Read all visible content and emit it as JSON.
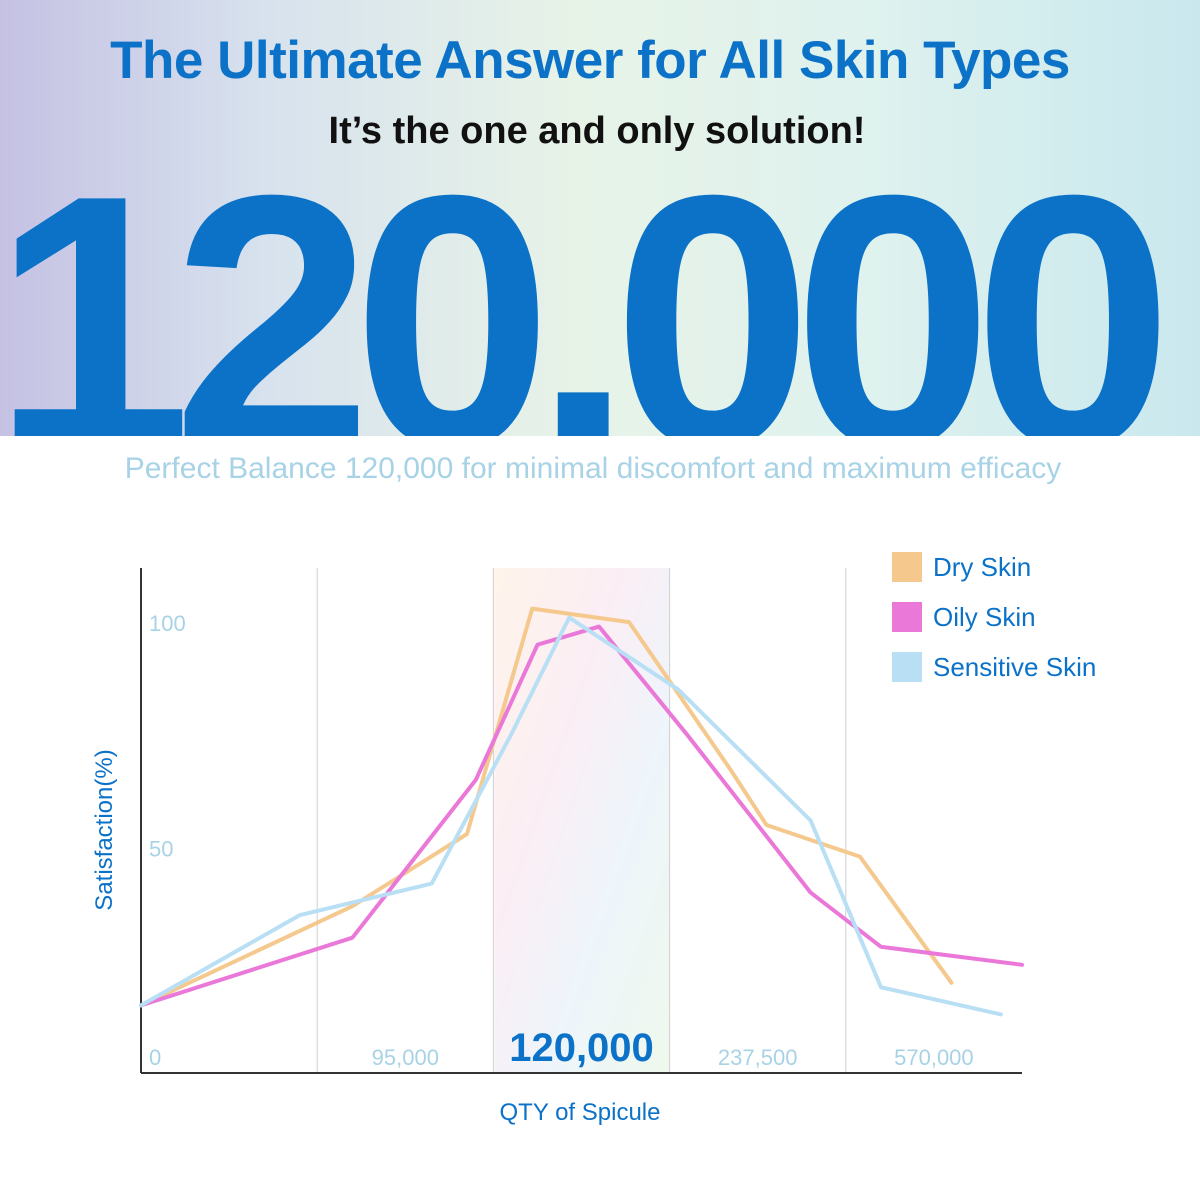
{
  "header": {
    "title": "The Ultimate Answer for All Skin Types",
    "subtitle": "It’s the one and only solution!",
    "big_number": "120,000",
    "tagline": "Perfect Balance 120,000 for minimal discomfort and maximum efficacy"
  },
  "colors": {
    "brand_blue": "#0b72c8",
    "tick_label": "#a8d2e6",
    "dry": "#f5c98e",
    "oily": "#ea78d8",
    "sensitive": "#b9dff5"
  },
  "chart_data": {
    "type": "line",
    "title": "",
    "xlabel": "QTY of Spicule",
    "ylabel": "Satisfaction(%)",
    "x_ticks": [
      "0",
      "95,000",
      "120,000",
      "237,500",
      "570,000"
    ],
    "highlighted_tick": "120,000",
    "y_ticks": [
      {
        "label": "100",
        "value": 100
      },
      {
        "label": "50",
        "value": 50
      }
    ],
    "ylim": [
      0,
      112
    ],
    "xlim": [
      0,
      5
    ],
    "grid": "vertical",
    "legend_position": "top-right",
    "series": [
      {
        "name": "Dry Skin",
        "color": "#f5c98e",
        "points": [
          [
            0,
            15
          ],
          [
            1.2,
            37
          ],
          [
            1.85,
            53
          ],
          [
            2.22,
            103
          ],
          [
            2.77,
            100
          ],
          [
            3.35,
            67
          ],
          [
            3.55,
            55
          ],
          [
            4.08,
            48
          ],
          [
            4.6,
            20
          ]
        ]
      },
      {
        "name": "Oily Skin",
        "color": "#ea78d8",
        "points": [
          [
            0,
            15
          ],
          [
            1.2,
            30
          ],
          [
            1.9,
            65
          ],
          [
            2.25,
            95
          ],
          [
            2.6,
            99
          ],
          [
            3.1,
            75
          ],
          [
            3.8,
            40
          ],
          [
            4.2,
            28
          ],
          [
            5.0,
            24
          ]
        ]
      },
      {
        "name": "Sensitive Skin",
        "color": "#b9dff5",
        "points": [
          [
            0,
            15
          ],
          [
            0.9,
            35
          ],
          [
            1.65,
            42
          ],
          [
            2.1,
            75
          ],
          [
            2.43,
            101
          ],
          [
            3.05,
            85
          ],
          [
            3.8,
            56
          ],
          [
            4.2,
            19
          ],
          [
            4.88,
            13
          ]
        ]
      }
    ]
  }
}
